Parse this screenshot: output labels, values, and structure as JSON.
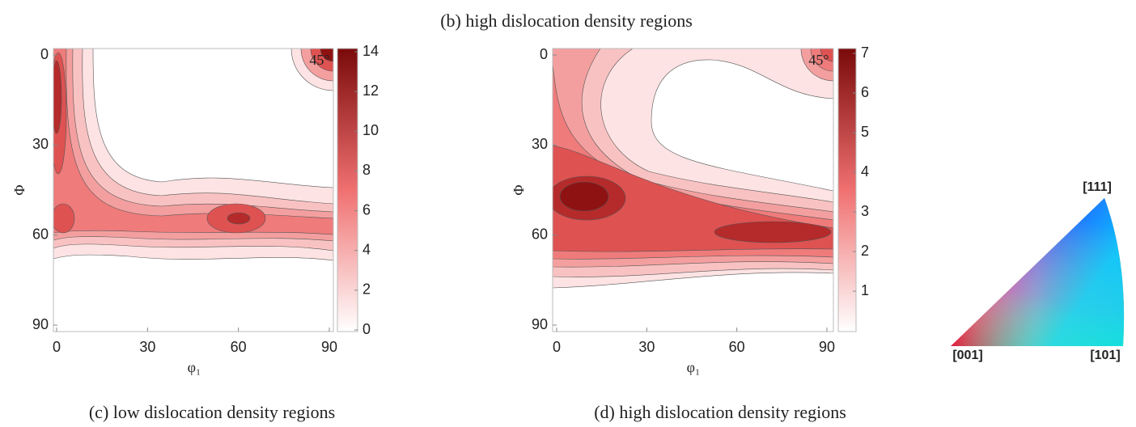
{
  "title": "(b) high dislocation density regions",
  "chart_data": [
    {
      "type": "contour",
      "caption": "(c) low dislocation density regions",
      "x_label": "φ₁",
      "y_label": "Φ",
      "annotation": "45°",
      "xlim": [
        0,
        90
      ],
      "xticks": [
        0,
        30,
        60,
        90
      ],
      "ylim": [
        0,
        90
      ],
      "yticks": [
        0,
        30,
        60,
        90
      ],
      "y_inverted": true,
      "colorbar": {
        "lim": [
          0,
          14
        ],
        "ticks": [
          0,
          2,
          4,
          6,
          8,
          10,
          12,
          14
        ]
      }
    },
    {
      "type": "contour",
      "caption": "(d) high dislocation density regions",
      "x_label": "φ₁",
      "y_label": "Φ",
      "annotation": "45°",
      "xlim": [
        0,
        90
      ],
      "xticks": [
        0,
        30,
        60,
        90
      ],
      "ylim": [
        0,
        90
      ],
      "yticks": [
        0,
        30,
        60,
        90
      ],
      "y_inverted": true,
      "colorbar": {
        "lim": [
          0,
          7
        ],
        "ticks": [
          1,
          2,
          3,
          4,
          5,
          6,
          7
        ]
      }
    }
  ],
  "ipf_key": {
    "labels": [
      "[111]",
      "[001]",
      "[101]"
    ]
  }
}
